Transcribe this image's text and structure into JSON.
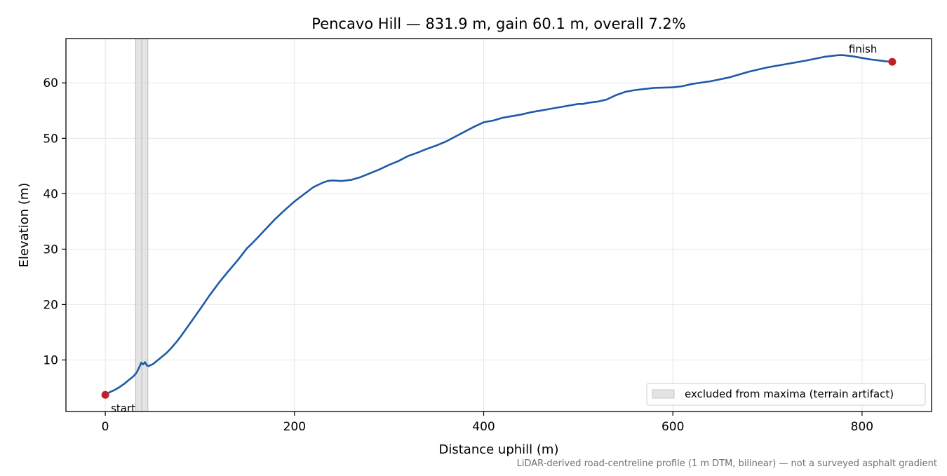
{
  "chart_data": {
    "type": "line",
    "title": "Pencavo Hill — 831.9 m, gain 60.1 m, overall 7.2%",
    "xlabel": "Distance uphill (m)",
    "ylabel": "Elevation (m)",
    "xlim": [
      -41.6,
      873.5
    ],
    "ylim": [
      0.7,
      68.0
    ],
    "xticks": [
      0,
      200,
      400,
      600,
      800
    ],
    "yticks": [
      10,
      20,
      30,
      40,
      50,
      60
    ],
    "xtick_labels": [
      "0",
      "200",
      "400",
      "600",
      "800"
    ],
    "ytick_labels": [
      "10",
      "20",
      "30",
      "40",
      "50",
      "60"
    ],
    "grid": true,
    "legend_position": "lower-right",
    "colors": {
      "line": "#1f5aa8",
      "marker": "#c0202a",
      "band": "#d9d9d9",
      "grid": "#e6e6e6",
      "footnote": "#707070"
    },
    "series": [
      {
        "x": [
          0,
          5,
          10,
          15,
          20,
          25,
          28,
          30,
          33,
          36,
          38,
          40,
          42,
          43,
          44,
          46,
          48,
          50,
          55,
          60,
          65,
          70,
          75,
          80,
          85,
          90,
          95,
          100,
          110,
          120,
          130,
          140,
          150,
          155,
          160,
          170,
          180,
          190,
          200,
          210,
          220,
          230,
          235,
          240,
          250,
          260,
          270,
          280,
          290,
          300,
          310,
          320,
          330,
          340,
          350,
          360,
          370,
          380,
          390,
          400,
          410,
          420,
          430,
          440,
          450,
          460,
          470,
          480,
          490,
          500,
          505,
          510,
          520,
          530,
          540,
          550,
          560,
          570,
          580,
          600,
          610,
          620,
          640,
          660,
          670,
          680,
          700,
          720,
          740,
          760,
          775,
          780,
          790,
          800,
          810,
          820,
          825,
          831.9
        ],
        "y": [
          3.7,
          4.2,
          4.6,
          5.1,
          5.7,
          6.4,
          6.8,
          7.1,
          7.7,
          8.7,
          9.5,
          9.2,
          9.6,
          9.3,
          9.0,
          8.9,
          9.1,
          9.2,
          9.9,
          10.6,
          11.3,
          12.2,
          13.2,
          14.3,
          15.5,
          16.7,
          17.9,
          19.1,
          21.6,
          23.9,
          26.0,
          28.0,
          30.2,
          31.0,
          31.9,
          33.7,
          35.5,
          37.1,
          38.6,
          39.9,
          41.2,
          42.0,
          42.3,
          42.4,
          42.3,
          42.5,
          43.0,
          43.7,
          44.4,
          45.2,
          45.9,
          46.8,
          47.4,
          48.1,
          48.7,
          49.4,
          50.3,
          51.2,
          52.1,
          52.9,
          53.2,
          53.7,
          54.0,
          54.3,
          54.7,
          55.0,
          55.3,
          55.6,
          55.9,
          56.2,
          56.2,
          56.4,
          56.6,
          57.0,
          57.8,
          58.4,
          58.7,
          58.9,
          59.1,
          59.2,
          59.4,
          59.8,
          60.3,
          61.0,
          61.5,
          62.0,
          62.8,
          63.4,
          64.0,
          64.7,
          65.0,
          65.0,
          64.8,
          64.5,
          64.2,
          64.0,
          63.9,
          63.8
        ]
      }
    ],
    "excluded_band": {
      "x_start": 32,
      "x_end": 45
    },
    "markers": {
      "start": {
        "x": 0,
        "y": 3.7,
        "label": "start"
      },
      "finish": {
        "x": 831.9,
        "y": 63.8,
        "label": "finish"
      }
    },
    "legend_entries": [
      "excluded from maxima (terrain artifact)"
    ],
    "footnote": "LiDAR-derived road-centreline profile (1 m DTM, bilinear) — not a surveyed asphalt gradient"
  }
}
